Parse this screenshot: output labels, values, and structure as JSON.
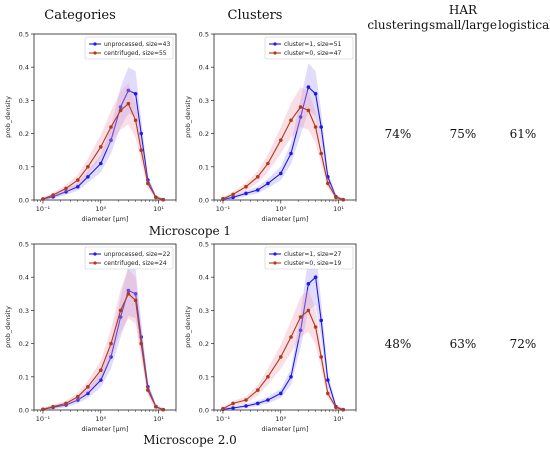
{
  "figure": {
    "col_headers": [
      "Categories",
      "Clusters"
    ],
    "metric_headers": [
      {
        "lines": [
          "clustering"
        ]
      },
      {
        "lines": [
          "HAR",
          "small/large"
        ]
      },
      {
        "lines": [
          "logistical"
        ]
      }
    ],
    "row_labels": [
      "Microscope 1",
      "Microscope 2.0"
    ],
    "results": [
      [
        "74%",
        "75%",
        "61%"
      ],
      [
        "48%",
        "63%",
        "72%"
      ]
    ]
  },
  "colors": {
    "blue": "#1a1aee",
    "red": "#b03a1a"
  },
  "chart_data": [
    {
      "type": "line",
      "xlabel": "diameter [µm]",
      "ylabel": "prob_density",
      "xscale": "log",
      "xlim": [
        0.07,
        20
      ],
      "ylim": [
        0,
        0.5
      ],
      "yticks": [
        "0.0",
        "0.1",
        "0.2",
        "0.3",
        "0.4",
        "0.5"
      ],
      "xticks": [
        "10⁻¹",
        "10⁰",
        "10¹"
      ],
      "legend_position": "top-right",
      "series": [
        {
          "name": "unprocessed, size=43",
          "color": "#1a1aee",
          "x": [
            0.1,
            0.15,
            0.25,
            0.4,
            0.6,
            1.0,
            1.5,
            2.2,
            3.0,
            4.0,
            5.0,
            6.5,
            9.0,
            12
          ],
          "y": [
            0.003,
            0.01,
            0.025,
            0.04,
            0.07,
            0.11,
            0.18,
            0.28,
            0.33,
            0.32,
            0.2,
            0.06,
            0.008,
            0.001
          ]
        },
        {
          "name": "centrifuged, size=55",
          "color": "#b03a1a",
          "x": [
            0.1,
            0.15,
            0.25,
            0.4,
            0.6,
            1.0,
            1.5,
            2.2,
            3.0,
            4.0,
            5.0,
            6.5,
            9.0,
            12
          ],
          "y": [
            0.003,
            0.015,
            0.035,
            0.06,
            0.1,
            0.16,
            0.22,
            0.27,
            0.29,
            0.24,
            0.15,
            0.05,
            0.008,
            0.001
          ]
        }
      ]
    },
    {
      "type": "line",
      "xlabel": "diameter [µm]",
      "ylabel": "prob_density",
      "xscale": "log",
      "xlim": [
        0.07,
        20
      ],
      "ylim": [
        0,
        0.5
      ],
      "yticks": [
        "0.0",
        "0.1",
        "0.2",
        "0.3",
        "0.4",
        "0.5"
      ],
      "xticks": [
        "10⁻¹",
        "10⁰",
        "10¹"
      ],
      "legend_position": "top-right",
      "series": [
        {
          "name": "cluster=1, size=51",
          "color": "#1a1aee",
          "x": [
            0.1,
            0.15,
            0.25,
            0.4,
            0.6,
            1.0,
            1.5,
            2.2,
            3.0,
            4.0,
            5.0,
            6.5,
            9.0,
            12
          ],
          "y": [
            0.002,
            0.008,
            0.02,
            0.03,
            0.05,
            0.08,
            0.14,
            0.25,
            0.34,
            0.32,
            0.22,
            0.07,
            0.01,
            0.001
          ]
        },
        {
          "name": "cluster=0, size=47",
          "color": "#b03a1a",
          "x": [
            0.1,
            0.15,
            0.25,
            0.4,
            0.6,
            1.0,
            1.5,
            2.2,
            3.0,
            4.0,
            5.0,
            6.5,
            9.0,
            12
          ],
          "y": [
            0.004,
            0.017,
            0.04,
            0.07,
            0.11,
            0.18,
            0.24,
            0.28,
            0.27,
            0.22,
            0.14,
            0.05,
            0.008,
            0.001
          ]
        }
      ]
    },
    {
      "type": "line",
      "xlabel": "diameter [µm]",
      "ylabel": "prob_density",
      "xscale": "log",
      "xlim": [
        0.07,
        20
      ],
      "ylim": [
        0,
        0.5
      ],
      "yticks": [
        "0.0",
        "0.1",
        "0.2",
        "0.3",
        "0.4",
        "0.5"
      ],
      "xticks": [
        "10⁻¹",
        "10⁰",
        "10¹"
      ],
      "legend_position": "top-right",
      "series": [
        {
          "name": "unprocessed, size=22",
          "color": "#1a1aee",
          "x": [
            0.1,
            0.15,
            0.25,
            0.4,
            0.6,
            1.0,
            1.5,
            2.2,
            3.0,
            4.0,
            5.0,
            6.5,
            9.0,
            12
          ],
          "y": [
            0.002,
            0.008,
            0.015,
            0.03,
            0.05,
            0.09,
            0.16,
            0.28,
            0.36,
            0.35,
            0.22,
            0.07,
            0.01,
            0.001
          ]
        },
        {
          "name": "centrifuged, size=24",
          "color": "#b03a1a",
          "x": [
            0.1,
            0.15,
            0.25,
            0.4,
            0.6,
            1.0,
            1.5,
            2.2,
            3.0,
            4.0,
            5.0,
            6.5,
            9.0,
            12
          ],
          "y": [
            0.002,
            0.01,
            0.02,
            0.04,
            0.07,
            0.12,
            0.2,
            0.3,
            0.35,
            0.33,
            0.2,
            0.06,
            0.01,
            0.001
          ]
        }
      ]
    },
    {
      "type": "line",
      "xlabel": "diameter [µm]",
      "ylabel": "prob_density",
      "xscale": "log",
      "xlim": [
        0.07,
        20
      ],
      "ylim": [
        0,
        0.5
      ],
      "yticks": [
        "0.0",
        "0.1",
        "0.2",
        "0.3",
        "0.4",
        "0.5"
      ],
      "xticks": [
        "10⁻¹",
        "10⁰",
        "10¹"
      ],
      "legend_position": "top-right",
      "series": [
        {
          "name": "cluster=1, size=27",
          "color": "#1a1aee",
          "x": [
            0.1,
            0.15,
            0.25,
            0.4,
            0.6,
            1.0,
            1.5,
            2.2,
            3.0,
            4.0,
            5.0,
            6.5,
            9.0,
            12
          ],
          "y": [
            0.002,
            0.006,
            0.012,
            0.02,
            0.03,
            0.05,
            0.1,
            0.24,
            0.38,
            0.4,
            0.27,
            0.09,
            0.01,
            0.001
          ]
        },
        {
          "name": "cluster=0, size=19",
          "color": "#b03a1a",
          "x": [
            0.1,
            0.15,
            0.25,
            0.4,
            0.6,
            1.0,
            1.5,
            2.2,
            3.0,
            4.0,
            5.0,
            6.5,
            9.0,
            12
          ],
          "y": [
            0.004,
            0.02,
            0.03,
            0.06,
            0.1,
            0.16,
            0.22,
            0.28,
            0.3,
            0.25,
            0.16,
            0.05,
            0.008,
            0.001
          ]
        }
      ]
    }
  ]
}
